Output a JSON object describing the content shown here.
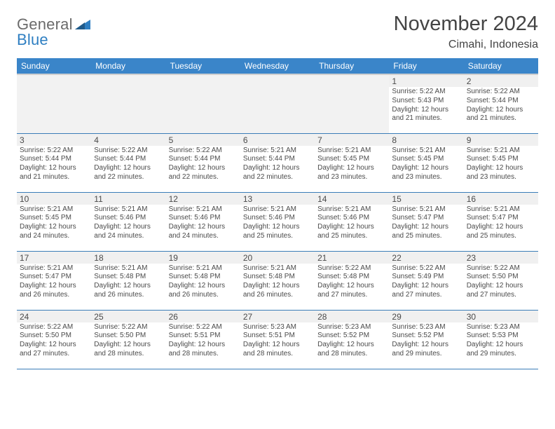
{
  "brand": {
    "line1": "General",
    "line2": "Blue",
    "color_general": "#6b6b6b",
    "color_blue": "#2f7fc2",
    "triangle_color": "#2f7fc2"
  },
  "title": "November 2024",
  "location": "Cimahi, Indonesia",
  "header_bg": "#3a85c9",
  "header_fg": "#ffffff",
  "row_border_color": "#3a7db8",
  "empty_bg": "#f2f2f2",
  "daynum_bg": "#f0f0f0",
  "text_color": "#4a4a4a",
  "columns": [
    "Sunday",
    "Monday",
    "Tuesday",
    "Wednesday",
    "Thursday",
    "Friday",
    "Saturday"
  ],
  "weeks": [
    [
      null,
      null,
      null,
      null,
      null,
      {
        "n": "1",
        "sunrise": "5:22 AM",
        "sunset": "5:43 PM",
        "daylight": "12 hours and 21 minutes."
      },
      {
        "n": "2",
        "sunrise": "5:22 AM",
        "sunset": "5:44 PM",
        "daylight": "12 hours and 21 minutes."
      }
    ],
    [
      {
        "n": "3",
        "sunrise": "5:22 AM",
        "sunset": "5:44 PM",
        "daylight": "12 hours and 21 minutes."
      },
      {
        "n": "4",
        "sunrise": "5:22 AM",
        "sunset": "5:44 PM",
        "daylight": "12 hours and 22 minutes."
      },
      {
        "n": "5",
        "sunrise": "5:22 AM",
        "sunset": "5:44 PM",
        "daylight": "12 hours and 22 minutes."
      },
      {
        "n": "6",
        "sunrise": "5:21 AM",
        "sunset": "5:44 PM",
        "daylight": "12 hours and 22 minutes."
      },
      {
        "n": "7",
        "sunrise": "5:21 AM",
        "sunset": "5:45 PM",
        "daylight": "12 hours and 23 minutes."
      },
      {
        "n": "8",
        "sunrise": "5:21 AM",
        "sunset": "5:45 PM",
        "daylight": "12 hours and 23 minutes."
      },
      {
        "n": "9",
        "sunrise": "5:21 AM",
        "sunset": "5:45 PM",
        "daylight": "12 hours and 23 minutes."
      }
    ],
    [
      {
        "n": "10",
        "sunrise": "5:21 AM",
        "sunset": "5:45 PM",
        "daylight": "12 hours and 24 minutes."
      },
      {
        "n": "11",
        "sunrise": "5:21 AM",
        "sunset": "5:46 PM",
        "daylight": "12 hours and 24 minutes."
      },
      {
        "n": "12",
        "sunrise": "5:21 AM",
        "sunset": "5:46 PM",
        "daylight": "12 hours and 24 minutes."
      },
      {
        "n": "13",
        "sunrise": "5:21 AM",
        "sunset": "5:46 PM",
        "daylight": "12 hours and 25 minutes."
      },
      {
        "n": "14",
        "sunrise": "5:21 AM",
        "sunset": "5:46 PM",
        "daylight": "12 hours and 25 minutes."
      },
      {
        "n": "15",
        "sunrise": "5:21 AM",
        "sunset": "5:47 PM",
        "daylight": "12 hours and 25 minutes."
      },
      {
        "n": "16",
        "sunrise": "5:21 AM",
        "sunset": "5:47 PM",
        "daylight": "12 hours and 25 minutes."
      }
    ],
    [
      {
        "n": "17",
        "sunrise": "5:21 AM",
        "sunset": "5:47 PM",
        "daylight": "12 hours and 26 minutes."
      },
      {
        "n": "18",
        "sunrise": "5:21 AM",
        "sunset": "5:48 PM",
        "daylight": "12 hours and 26 minutes."
      },
      {
        "n": "19",
        "sunrise": "5:21 AM",
        "sunset": "5:48 PM",
        "daylight": "12 hours and 26 minutes."
      },
      {
        "n": "20",
        "sunrise": "5:21 AM",
        "sunset": "5:48 PM",
        "daylight": "12 hours and 26 minutes."
      },
      {
        "n": "21",
        "sunrise": "5:22 AM",
        "sunset": "5:48 PM",
        "daylight": "12 hours and 27 minutes."
      },
      {
        "n": "22",
        "sunrise": "5:22 AM",
        "sunset": "5:49 PM",
        "daylight": "12 hours and 27 minutes."
      },
      {
        "n": "23",
        "sunrise": "5:22 AM",
        "sunset": "5:50 PM",
        "daylight": "12 hours and 27 minutes."
      }
    ],
    [
      {
        "n": "24",
        "sunrise": "5:22 AM",
        "sunset": "5:50 PM",
        "daylight": "12 hours and 27 minutes."
      },
      {
        "n": "25",
        "sunrise": "5:22 AM",
        "sunset": "5:50 PM",
        "daylight": "12 hours and 28 minutes."
      },
      {
        "n": "26",
        "sunrise": "5:22 AM",
        "sunset": "5:51 PM",
        "daylight": "12 hours and 28 minutes."
      },
      {
        "n": "27",
        "sunrise": "5:23 AM",
        "sunset": "5:51 PM",
        "daylight": "12 hours and 28 minutes."
      },
      {
        "n": "28",
        "sunrise": "5:23 AM",
        "sunset": "5:52 PM",
        "daylight": "12 hours and 28 minutes."
      },
      {
        "n": "29",
        "sunrise": "5:23 AM",
        "sunset": "5:52 PM",
        "daylight": "12 hours and 29 minutes."
      },
      {
        "n": "30",
        "sunrise": "5:23 AM",
        "sunset": "5:53 PM",
        "daylight": "12 hours and 29 minutes."
      }
    ]
  ],
  "labels": {
    "sunrise": "Sunrise:",
    "sunset": "Sunset:",
    "daylight": "Daylight:"
  }
}
